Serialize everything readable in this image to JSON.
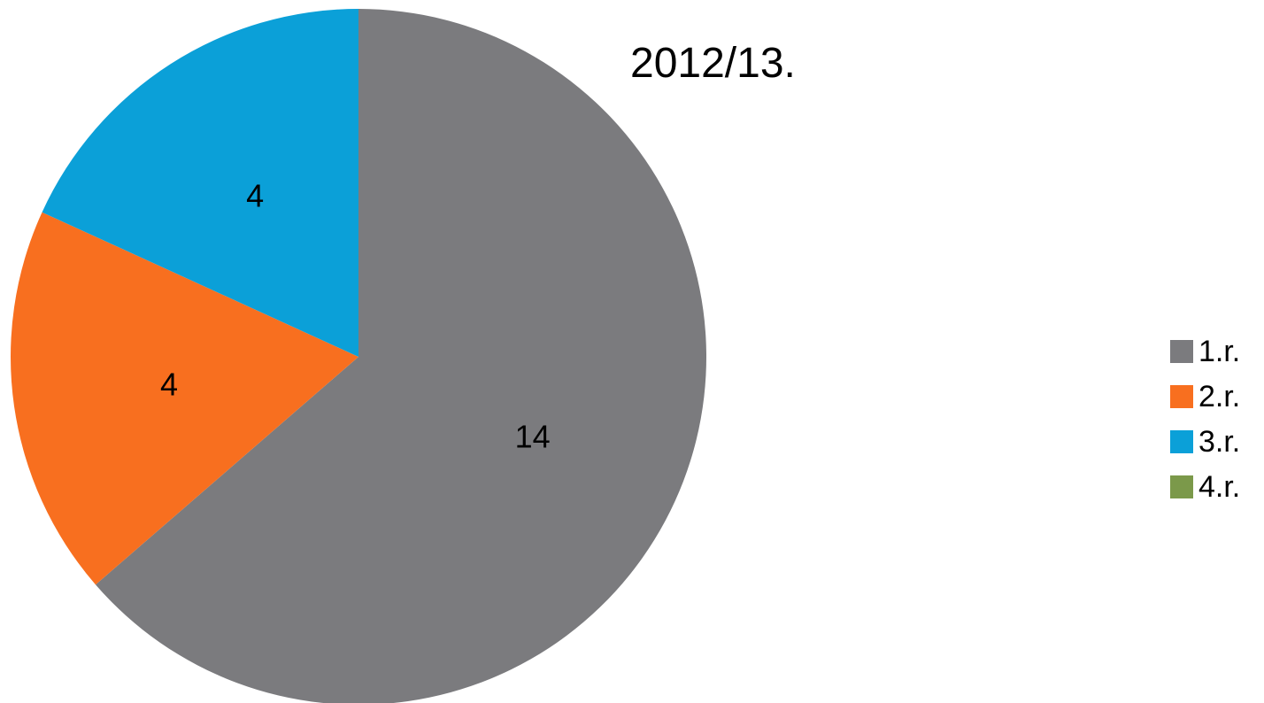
{
  "chart_data": {
    "type": "pie",
    "title": "2012/13.",
    "start_angle": "12 o'clock",
    "direction": "clockwise",
    "legend_position": "right",
    "categories": [
      "1.r.",
      "2.r.",
      "3.r.",
      "4.r."
    ],
    "values": [
      14,
      4,
      4,
      0
    ],
    "data_labels": [
      "14",
      "4",
      "4",
      ""
    ],
    "colors": [
      "#7b7b7e",
      "#f86f1f",
      "#0ba0d8",
      "#7b994a"
    ]
  }
}
